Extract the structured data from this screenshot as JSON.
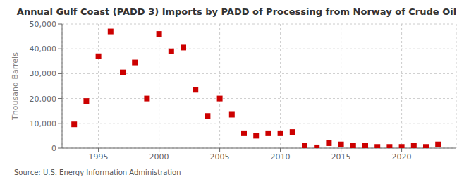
{
  "chart_data": {
    "type": "scatter",
    "title": "Annual Gulf Coast (PADD 3) Imports by PADD of Processing from Norway of Crude Oil",
    "y_label": "Thousand Barrels",
    "annotations": [
      "Source: U.S. Energy Information Administration"
    ],
    "x": [
      1993,
      1994,
      1995,
      1996,
      1997,
      1998,
      1999,
      2000,
      2001,
      2002,
      2003,
      2004,
      2005,
      2006,
      2007,
      2008,
      2009,
      2010,
      2011,
      2012,
      2013,
      2014,
      2015,
      2016,
      2017,
      2018,
      2019,
      2020,
      2021,
      2022,
      2023
    ],
    "values": [
      9600,
      19000,
      37000,
      47000,
      30500,
      34500,
      20000,
      46000,
      39000,
      40500,
      23500,
      13000,
      20000,
      13500,
      6000,
      5000,
      6000,
      6000,
      6500,
      1000,
      300,
      2000,
      1500,
      1000,
      1000,
      500,
      500,
      500,
      1000,
      500,
      1500
    ],
    "color": "#cc0000",
    "marker": "square",
    "xlim": [
      1992,
      2024.5
    ],
    "ylim": [
      0,
      50000
    ],
    "xticks": [
      1995,
      2000,
      2005,
      2010,
      2015,
      2020
    ],
    "yticks": [
      0,
      {
        "value": 10000,
        "label": "10,000"
      },
      {
        "value": 20000,
        "label": "20,000"
      },
      {
        "value": 30000,
        "label": "30,000"
      },
      {
        "value": 40000,
        "label": "40,000"
      },
      {
        "value": 50000,
        "label": "50,000"
      }
    ],
    "grid": true
  }
}
